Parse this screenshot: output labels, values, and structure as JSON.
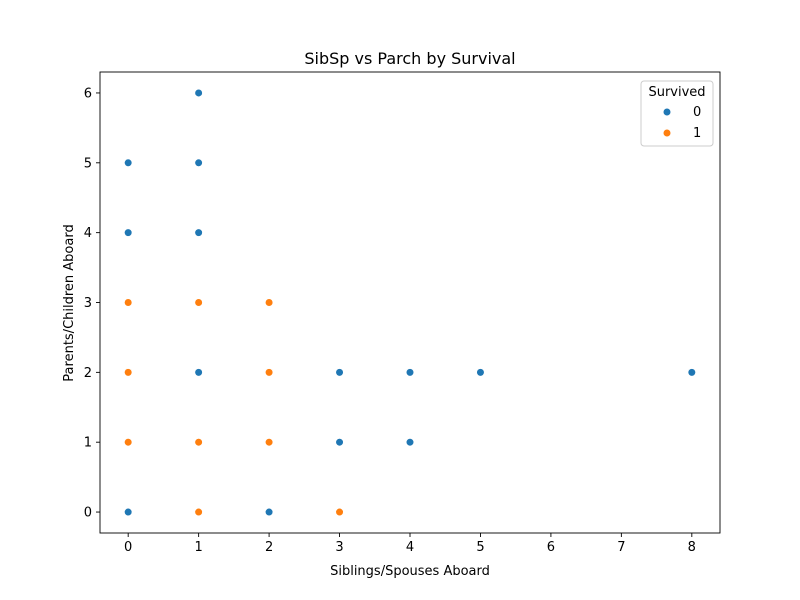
{
  "chart_data": {
    "type": "scatter",
    "title": "SibSp vs Parch by Survival",
    "xlabel": "Siblings/Spouses Aboard",
    "ylabel": "Parents/Children Aboard",
    "xlim": [
      -0.4,
      8.4
    ],
    "ylim": [
      -0.3,
      6.3
    ],
    "x_ticks": [
      0,
      1,
      2,
      3,
      4,
      5,
      6,
      7,
      8
    ],
    "y_ticks": [
      0,
      1,
      2,
      3,
      4,
      5,
      6
    ],
    "grid": false,
    "legend": {
      "title": "Survived",
      "placement": "top-right"
    },
    "series": [
      {
        "name": "0",
        "color": "#1f77b4",
        "points": [
          [
            0,
            0
          ],
          [
            0,
            1
          ],
          [
            0,
            2
          ],
          [
            0,
            3
          ],
          [
            0,
            4
          ],
          [
            0,
            5
          ],
          [
            1,
            0
          ],
          [
            1,
            1
          ],
          [
            1,
            2
          ],
          [
            1,
            3
          ],
          [
            1,
            4
          ],
          [
            1,
            5
          ],
          [
            1,
            6
          ],
          [
            2,
            0
          ],
          [
            2,
            1
          ],
          [
            2,
            2
          ],
          [
            2,
            3
          ],
          [
            3,
            1
          ],
          [
            3,
            2
          ],
          [
            4,
            1
          ],
          [
            4,
            2
          ],
          [
            5,
            2
          ],
          [
            8,
            2
          ]
        ]
      },
      {
        "name": "1",
        "color": "#ff7f0e",
        "points": [
          [
            0,
            1
          ],
          [
            0,
            2
          ],
          [
            0,
            3
          ],
          [
            1,
            0
          ],
          [
            1,
            1
          ],
          [
            1,
            3
          ],
          [
            2,
            1
          ],
          [
            2,
            2
          ],
          [
            2,
            3
          ],
          [
            3,
            0
          ]
        ]
      }
    ]
  }
}
